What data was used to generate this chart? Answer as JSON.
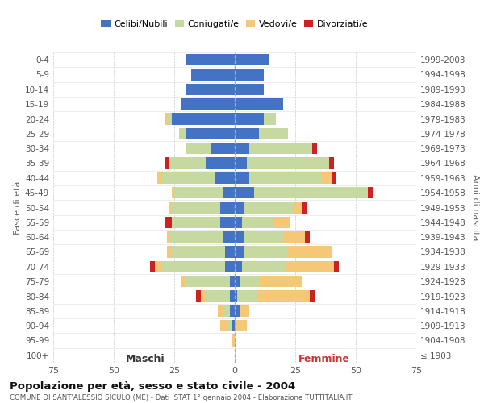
{
  "age_groups": [
    "0-4",
    "5-9",
    "10-14",
    "15-19",
    "20-24",
    "25-29",
    "30-34",
    "35-39",
    "40-44",
    "45-49",
    "50-54",
    "55-59",
    "60-64",
    "65-69",
    "70-74",
    "75-79",
    "80-84",
    "85-89",
    "90-94",
    "95-99",
    "100+"
  ],
  "birth_years": [
    "1999-2003",
    "1994-1998",
    "1989-1993",
    "1984-1988",
    "1979-1983",
    "1974-1978",
    "1969-1973",
    "1964-1968",
    "1959-1963",
    "1954-1958",
    "1949-1953",
    "1944-1948",
    "1939-1943",
    "1934-1938",
    "1929-1933",
    "1924-1928",
    "1919-1923",
    "1914-1918",
    "1909-1913",
    "1904-1908",
    "≤ 1903"
  ],
  "colors": {
    "celibi": "#4472C4",
    "coniugati": "#c5d9a0",
    "vedovi": "#f5c878",
    "divorziati": "#cc2222"
  },
  "maschi_celibi": [
    20,
    18,
    20,
    22,
    26,
    20,
    10,
    12,
    8,
    5,
    6,
    6,
    5,
    4,
    4,
    2,
    2,
    2,
    1,
    0,
    0
  ],
  "maschi_coniugati": [
    0,
    0,
    0,
    0,
    2,
    3,
    10,
    15,
    22,
    20,
    20,
    20,
    22,
    22,
    26,
    18,
    10,
    3,
    2,
    0,
    0
  ],
  "maschi_vedovi": [
    0,
    0,
    0,
    0,
    1,
    0,
    0,
    0,
    2,
    1,
    1,
    0,
    1,
    2,
    3,
    2,
    2,
    2,
    3,
    1,
    0
  ],
  "maschi_divorziati": [
    0,
    0,
    0,
    0,
    0,
    0,
    0,
    2,
    0,
    0,
    0,
    3,
    0,
    0,
    2,
    0,
    2,
    0,
    0,
    0,
    0
  ],
  "femmine_celibi": [
    14,
    12,
    12,
    20,
    12,
    10,
    6,
    5,
    6,
    8,
    4,
    3,
    4,
    4,
    3,
    2,
    1,
    2,
    0,
    0,
    0
  ],
  "femmine_coniugati": [
    0,
    0,
    0,
    0,
    5,
    12,
    26,
    34,
    30,
    47,
    20,
    13,
    16,
    18,
    18,
    8,
    8,
    0,
    0,
    0,
    0
  ],
  "femmine_vedovi": [
    0,
    0,
    0,
    0,
    0,
    0,
    0,
    0,
    4,
    0,
    4,
    7,
    9,
    18,
    20,
    18,
    22,
    4,
    5,
    0,
    0
  ],
  "femmine_divorziati": [
    0,
    0,
    0,
    0,
    0,
    0,
    2,
    2,
    2,
    2,
    2,
    0,
    2,
    0,
    2,
    0,
    2,
    0,
    0,
    0,
    0
  ],
  "xlim": 75,
  "xticks": [
    -75,
    -50,
    -25,
    0,
    25,
    50,
    75
  ],
  "title": "Popolazione per età, sesso e stato civile - 2004",
  "subtitle": "COMUNE DI SANT'ALESSIO SICULO (ME) - Dati ISTAT 1° gennaio 2004 - Elaborazione TUTTITALIA.IT",
  "ylabel": "Fasce di età",
  "ylabel_right": "Anni di nascita",
  "xlabel_left": "Maschi",
  "xlabel_right": "Femmine"
}
